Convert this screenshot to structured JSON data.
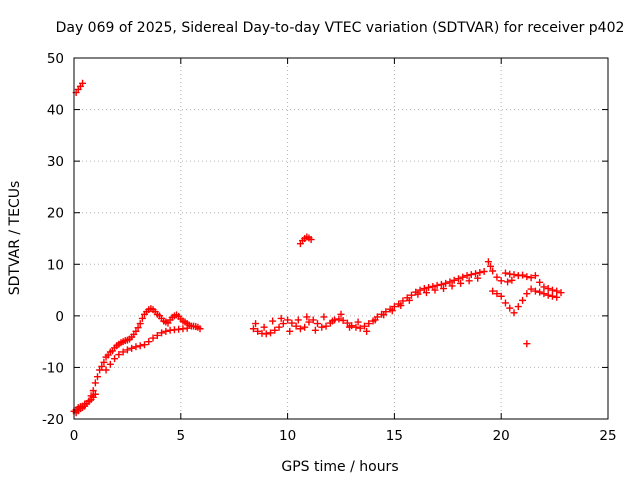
{
  "chart_data": {
    "type": "scatter",
    "title": "Day 069 of 2025, Sidereal Day-to-day VTEC variation (SDTVAR) for receiver p402",
    "xlabel": "GPS time / hours",
    "ylabel": "SDTVAR / TECUs",
    "xlim": [
      0,
      25
    ],
    "ylim": [
      -20,
      50
    ],
    "xticks": [
      "0",
      "5",
      "10",
      "15",
      "20",
      "25"
    ],
    "yticks": [
      "-20",
      "-10",
      "0",
      "10",
      "20",
      "30",
      "40",
      "50"
    ],
    "grid": true,
    "marker": "+",
    "series_color": "#ff0000",
    "series": [
      {
        "name": "SDTVAR",
        "x": [
          0.0,
          0.1,
          0.2,
          0.3,
          0.4,
          0.5,
          0.6,
          0.7,
          0.8,
          0.9,
          1.0,
          0.1,
          0.2,
          0.3,
          0.4,
          0.5,
          0.7,
          0.8,
          0.9,
          1.0,
          1.1,
          1.2,
          1.3,
          1.4,
          1.5,
          1.6,
          1.7,
          1.8,
          1.9,
          2.0,
          2.1,
          2.2,
          2.3,
          2.4,
          2.5,
          2.6,
          2.7,
          2.8,
          2.9,
          3.0,
          3.1,
          3.2,
          3.3,
          3.4,
          3.5,
          3.6,
          3.7,
          3.8,
          3.9,
          4.0,
          4.1,
          4.2,
          4.3,
          4.4,
          4.5,
          4.6,
          4.7,
          4.8,
          4.9,
          5.0,
          5.1,
          5.2,
          5.3,
          5.4,
          5.5,
          5.6,
          5.7,
          5.8,
          5.9,
          1.5,
          1.7,
          1.9,
          2.1,
          2.3,
          2.5,
          2.7,
          2.9,
          3.1,
          3.3,
          3.5,
          3.7,
          3.9,
          4.1,
          4.3,
          4.5,
          4.7,
          4.9,
          5.1,
          5.3,
          8.4,
          8.6,
          8.8,
          9.0,
          9.2,
          9.4,
          9.6,
          9.8,
          10.0,
          10.2,
          10.4,
          10.6,
          10.8,
          11.0,
          11.2,
          11.4,
          11.6,
          11.8,
          12.0,
          12.2,
          12.4,
          12.6,
          12.8,
          13.0,
          13.2,
          13.4,
          13.6,
          13.8,
          14.0,
          14.2,
          14.4,
          14.6,
          14.8,
          15.0,
          15.2,
          15.4,
          15.6,
          15.8,
          16.0,
          16.2,
          16.4,
          16.6,
          16.8,
          17.0,
          17.2,
          17.4,
          17.6,
          17.8,
          18.0,
          18.2,
          18.4,
          18.6,
          18.8,
          19.0,
          19.2,
          8.5,
          8.9,
          9.3,
          9.7,
          10.1,
          10.5,
          10.9,
          11.3,
          11.7,
          12.1,
          12.5,
          12.9,
          13.3,
          13.7,
          14.1,
          14.5,
          14.9,
          15.3,
          15.7,
          16.1,
          16.5,
          16.9,
          17.3,
          17.7,
          18.1,
          18.5,
          18.9,
          10.6,
          10.7,
          10.8,
          10.9,
          11.0,
          11.1,
          0.1,
          0.2,
          0.3,
          0.4,
          19.4,
          19.5,
          19.6,
          19.8,
          20.0,
          20.2,
          20.4,
          20.6,
          20.8,
          21.0,
          21.2,
          21.4,
          21.6,
          21.8,
          22.0,
          22.2,
          22.4,
          22.6,
          22.8,
          19.6,
          19.8,
          20.0,
          20.2,
          20.4,
          20.6,
          20.8,
          21.0,
          21.2,
          21.4,
          21.6,
          21.8,
          22.0,
          22.2,
          22.4,
          22.6,
          20.3,
          20.5,
          21.2
        ],
        "y": [
          -18.5,
          -18.2,
          -17.8,
          -17.6,
          -17.8,
          -17.5,
          -17.0,
          -16.6,
          -16.2,
          -15.8,
          -15.2,
          -18.8,
          -18.4,
          -18.0,
          -17.5,
          -17.1,
          -16.5,
          -15.5,
          -14.5,
          -13.0,
          -11.8,
          -10.5,
          -9.8,
          -9.0,
          -8.0,
          -7.6,
          -7.0,
          -6.8,
          -6.2,
          -5.8,
          -5.5,
          -5.2,
          -5.0,
          -4.8,
          -4.7,
          -4.5,
          -4.1,
          -3.6,
          -3.0,
          -2.3,
          -1.5,
          -0.5,
          0.3,
          0.8,
          1.2,
          1.4,
          1.2,
          0.8,
          0.3,
          0.0,
          -0.5,
          -1.0,
          -1.2,
          -1.4,
          -0.8,
          -0.3,
          0.0,
          0.2,
          -0.1,
          -0.6,
          -1.0,
          -1.2,
          -1.5,
          -1.8,
          -2.0,
          -2.0,
          -2.1,
          -2.2,
          -2.5,
          -10.5,
          -9.4,
          -8.3,
          -7.5,
          -7.0,
          -6.6,
          -6.3,
          -6.0,
          -5.8,
          -5.6,
          -5.0,
          -4.3,
          -3.8,
          -3.3,
          -3.0,
          -2.8,
          -2.7,
          -2.6,
          -2.5,
          -2.4,
          -2.5,
          -3.0,
          -3.4,
          -3.5,
          -3.3,
          -2.8,
          -2.2,
          -1.5,
          -0.8,
          -1.4,
          -2.0,
          -2.5,
          -2.2,
          -1.2,
          -0.8,
          -1.5,
          -2.2,
          -2.0,
          -1.4,
          -0.8,
          -0.6,
          -0.9,
          -1.4,
          -1.9,
          -2.2,
          -2.4,
          -2.0,
          -1.5,
          -1.0,
          -0.2,
          0.3,
          0.8,
          1.3,
          1.8,
          2.3,
          2.9,
          3.5,
          4.0,
          4.6,
          5.0,
          5.3,
          5.5,
          5.7,
          5.9,
          6.1,
          6.3,
          6.6,
          6.9,
          7.2,
          7.5,
          7.8,
          8.0,
          8.2,
          8.4,
          8.6,
          -1.5,
          -2.2,
          -1.0,
          -0.5,
          -3.0,
          -0.8,
          -0.2,
          -2.8,
          -0.2,
          -1.0,
          0.3,
          -2.2,
          -1.2,
          -3.0,
          -0.8,
          0.2,
          1.0,
          2.0,
          3.0,
          4.2,
          4.5,
          5.0,
          5.3,
          5.8,
          6.3,
          6.8,
          7.3,
          14.0,
          14.6,
          15.0,
          15.3,
          15.1,
          14.8,
          43.3,
          43.9,
          44.5,
          45.1,
          10.5,
          9.6,
          8.7,
          7.5,
          6.8,
          8.3,
          8.1,
          8.0,
          7.8,
          7.9,
          7.6,
          7.4,
          7.8,
          6.5,
          5.6,
          5.3,
          5.0,
          4.8,
          4.5,
          4.8,
          4.3,
          3.8,
          2.5,
          1.5,
          0.6,
          1.8,
          3.0,
          4.3,
          5.2,
          4.8,
          4.6,
          4.3,
          4.0,
          3.8,
          3.6,
          6.6,
          6.9,
          -5.4
        ]
      }
    ]
  }
}
